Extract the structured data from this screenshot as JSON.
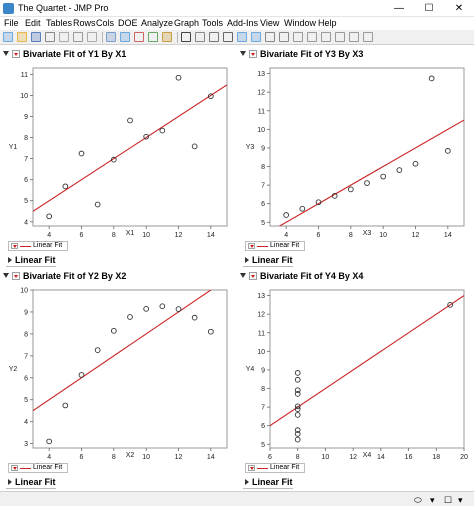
{
  "window": {
    "title": "The Quartet - JMP Pro",
    "minimize": "—",
    "maximize": "☐",
    "close": "✕"
  },
  "menu": [
    "File",
    "Edit",
    "Tables",
    "Rows",
    "Cols",
    "DOE",
    "Analyze",
    "Graph",
    "Tools",
    "Add-Ins",
    "View",
    "Window",
    "Help"
  ],
  "toolbar": {
    "icons": [
      "new-table-icon",
      "open-icon",
      "save-icon",
      "print-icon",
      "cut-icon",
      "copy-icon",
      "paste-icon",
      "journal-icon",
      "layout-icon",
      "data-grid-icon",
      "script-icon",
      "chart-icon",
      "selection-arrow-icon",
      "crosshair-icon",
      "grabber-icon",
      "magnifier-icon",
      "lasso-icon",
      "brush-icon",
      "annotate-icon",
      "line-icon",
      "polygon-icon",
      "rectangle-icon",
      "oval-icon",
      "freehand-icon",
      "pin-icon",
      "pointer-icon"
    ]
  },
  "panels": [
    {
      "title": "Bivariate Fit of Y1 By X1",
      "legend": "Linear Fit",
      "section": "Linear Fit",
      "chart_data": {
        "type": "scatter",
        "xlabel": "X1",
        "ylabel": "Y1",
        "xlim": [
          3,
          15
        ],
        "ylim": [
          3.8,
          11.3
        ],
        "xticks": [
          4,
          6,
          8,
          10,
          12,
          14
        ],
        "yticks": [
          4,
          5,
          6,
          7,
          8,
          9,
          10,
          11
        ],
        "x": [
          10,
          8,
          13,
          9,
          11,
          14,
          6,
          4,
          12,
          7,
          5
        ],
        "y": [
          8.04,
          6.95,
          7.58,
          8.81,
          8.33,
          9.96,
          7.24,
          4.26,
          10.84,
          4.82,
          5.68
        ],
        "fit": {
          "intercept": 3.0,
          "slope": 0.5
        }
      }
    },
    {
      "title": "Bivariate Fit of Y3 By X3",
      "legend": "Linear Fit",
      "section": "Linear Fit",
      "chart_data": {
        "type": "scatter",
        "xlabel": "X3",
        "ylabel": "Y3",
        "xlim": [
          3,
          15
        ],
        "ylim": [
          4.8,
          13.3
        ],
        "xticks": [
          4,
          6,
          8,
          10,
          12,
          14
        ],
        "yticks": [
          5,
          6,
          7,
          8,
          9,
          10,
          11,
          12,
          13
        ],
        "x": [
          10,
          8,
          13,
          9,
          11,
          14,
          6,
          4,
          12,
          7,
          5
        ],
        "y": [
          7.46,
          6.77,
          12.74,
          7.11,
          7.81,
          8.84,
          6.08,
          5.39,
          8.15,
          6.42,
          5.73
        ],
        "fit": {
          "intercept": 3.0,
          "slope": 0.5
        }
      }
    },
    {
      "title": "Bivariate Fit of Y2 By X2",
      "legend": "Linear Fit",
      "section": "Linear Fit",
      "chart_data": {
        "type": "scatter",
        "xlabel": "X2",
        "ylabel": "Y2",
        "xlim": [
          3,
          15
        ],
        "ylim": [
          2.8,
          10
        ],
        "xticks": [
          4,
          6,
          8,
          10,
          12,
          14
        ],
        "yticks": [
          3,
          4,
          5,
          6,
          7,
          8,
          9,
          10
        ],
        "x": [
          10,
          8,
          13,
          9,
          11,
          14,
          6,
          4,
          12,
          7,
          5
        ],
        "y": [
          9.14,
          8.14,
          8.74,
          8.77,
          9.26,
          8.1,
          6.13,
          3.1,
          9.13,
          7.26,
          4.74
        ],
        "fit": {
          "intercept": 3.0,
          "slope": 0.5
        }
      }
    },
    {
      "title": "Bivariate Fit of Y4 By X4",
      "legend": "Linear Fit",
      "section": "Linear Fit",
      "chart_data": {
        "type": "scatter",
        "xlabel": "X4",
        "ylabel": "Y4",
        "xlim": [
          6,
          20
        ],
        "ylim": [
          4.8,
          13.3
        ],
        "xticks": [
          6,
          8,
          10,
          12,
          14,
          16,
          18,
          20
        ],
        "yticks": [
          5,
          6,
          7,
          8,
          9,
          10,
          11,
          12,
          13
        ],
        "x": [
          8,
          8,
          8,
          8,
          8,
          8,
          8,
          19,
          8,
          8,
          8
        ],
        "y": [
          6.58,
          5.76,
          7.71,
          8.84,
          8.47,
          7.04,
          5.25,
          12.5,
          5.56,
          7.91,
          6.89
        ],
        "fit": {
          "intercept": 3.0,
          "slope": 0.5
        }
      }
    }
  ],
  "colors": {
    "fit_line": "#cc2222",
    "points": "#333333"
  }
}
